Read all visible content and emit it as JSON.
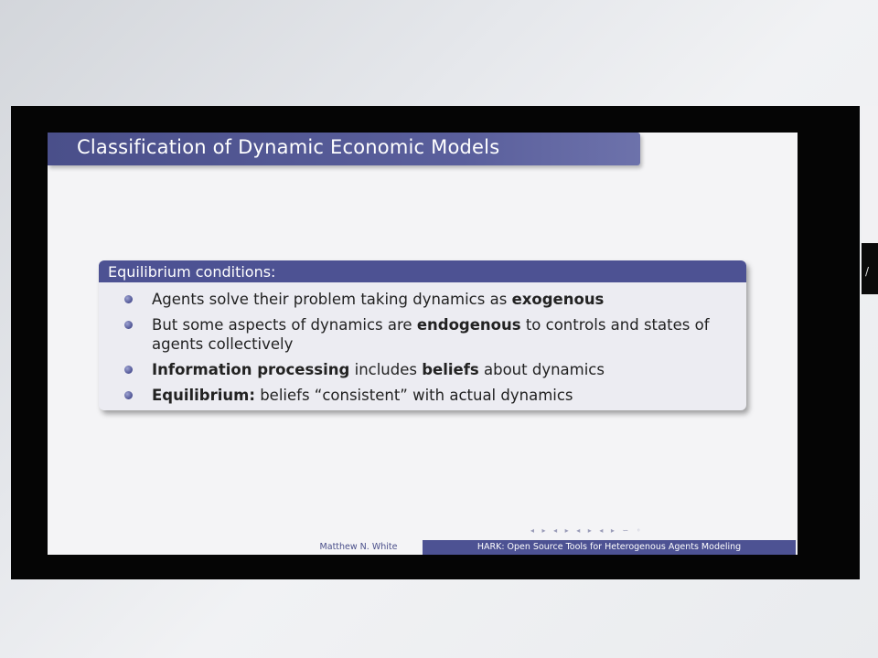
{
  "slide": {
    "title": "Classification of Dynamic Economic Models",
    "block_title": "Equilibrium conditions:",
    "items": [
      {
        "parts": [
          {
            "t": "Agents solve their problem taking dynamics as ",
            "b": false
          },
          {
            "t": "exogenous",
            "b": true
          }
        ]
      },
      {
        "parts": [
          {
            "t": "But some aspects of dynamics are ",
            "b": false
          },
          {
            "t": "endogenous",
            "b": true
          },
          {
            "t": " to controls and states of agents collectively",
            "b": false
          }
        ]
      },
      {
        "parts": [
          {
            "t": "Information processing",
            "b": true
          },
          {
            "t": " includes ",
            "b": false
          },
          {
            "t": "beliefs",
            "b": true
          },
          {
            "t": " about dynamics",
            "b": false
          }
        ]
      },
      {
        "parts": [
          {
            "t": "Equilibrium:",
            "b": true
          },
          {
            "t": " beliefs “consistent” with actual dynamics",
            "b": false
          }
        ]
      }
    ],
    "footer": {
      "author": "Matthew N. White",
      "title": "HARK: Open Source Tools for Heterogenous Agents Modeling"
    },
    "nav_symbols": "◂ ▸ ◂ ▸ ◂ ▸ ◂ ▸ ∽ ◦"
  },
  "colors": {
    "accent": "#4d5293",
    "slide_background": "#f4f4f6",
    "screen_frame": "#050505"
  }
}
